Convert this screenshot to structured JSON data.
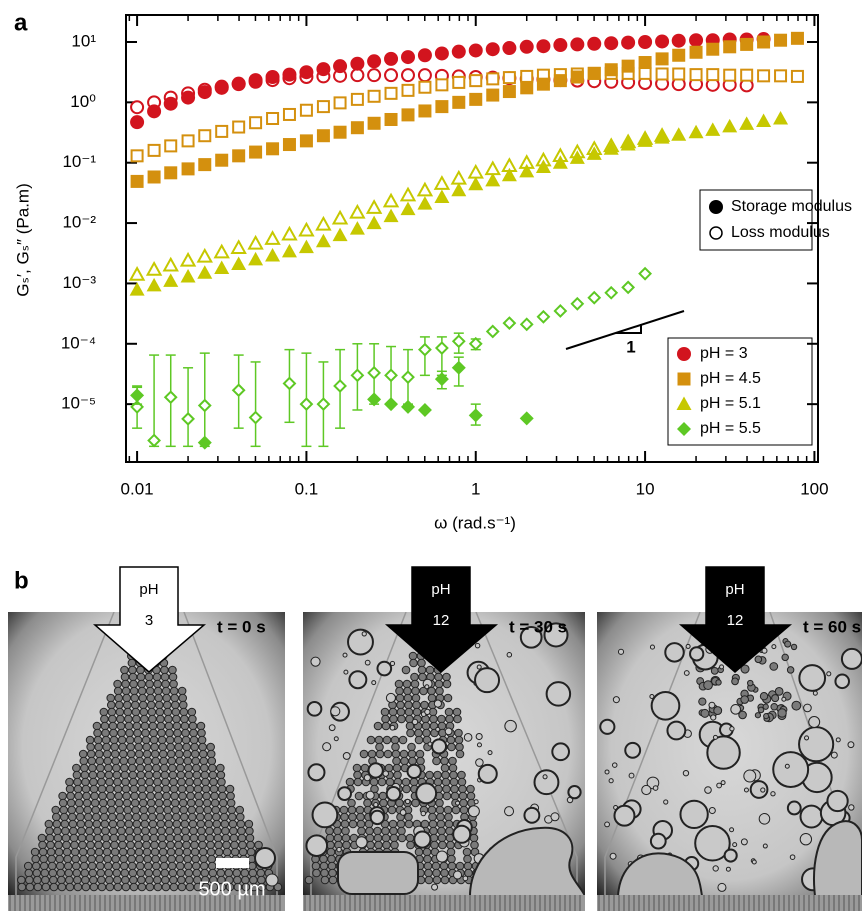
{
  "chart_data": {
    "type": "scatter",
    "panel": "a",
    "xlabel": "ω (rad.s⁻¹)",
    "ylabel": "Gₛ′, Gₛ″ (Pa.m)",
    "log_x": true,
    "log_y": true,
    "minor_ticks": true,
    "xlim": [
      0.0086,
      105
    ],
    "ylim": [
      1.1e-06,
      28
    ],
    "xticks": [
      0.01,
      0.1,
      1,
      10,
      100
    ],
    "yticks": [
      {
        "value": 10,
        "label": "10¹"
      },
      {
        "value": 1,
        "label": "10⁰"
      },
      {
        "value": 0.1,
        "label": "10⁻¹"
      },
      {
        "value": 0.01,
        "label": "10⁻²"
      },
      {
        "value": 0.001,
        "label": "10⁻³"
      },
      {
        "value": 0.0001,
        "label": "10⁻⁴"
      },
      {
        "value": 1e-05,
        "label": "10⁻⁵"
      }
    ],
    "x": [
      0.01,
      0.0126,
      0.0158,
      0.02,
      0.0251,
      0.0316,
      0.0398,
      0.0501,
      0.0631,
      0.0794,
      0.1,
      0.126,
      0.158,
      0.2,
      0.251,
      0.316,
      0.398,
      0.501,
      0.631,
      0.794,
      1,
      1.26,
      1.58,
      2,
      2.51,
      3.16,
      3.98,
      5.01,
      6.31,
      7.94,
      10,
      12.6,
      15.8,
      20,
      25.1,
      31.6,
      39.8,
      50.1,
      63.1,
      79.4
    ],
    "modulus_legend": [
      "Storage modulus",
      "Loss modulus"
    ],
    "slope_label": "1",
    "series": [
      {
        "name": "pH = 3",
        "color": "#d2141e",
        "marker": "circle",
        "storage": [
          0.47,
          0.71,
          0.95,
          1.2,
          1.48,
          1.74,
          2.04,
          2.34,
          2.63,
          2.88,
          3.16,
          3.55,
          3.98,
          4.37,
          4.79,
          5.25,
          5.62,
          6.03,
          6.46,
          6.92,
          7.24,
          7.59,
          7.94,
          8.32,
          8.51,
          8.91,
          9.12,
          9.33,
          9.55,
          9.77,
          10,
          10.2,
          10.5,
          10.7,
          10.7,
          11,
          11,
          11.2,
          null,
          null
        ],
        "loss": [
          0.83,
          1,
          1.2,
          1.41,
          1.62,
          1.82,
          2,
          2.19,
          2.34,
          2.51,
          2.63,
          2.69,
          2.75,
          2.82,
          2.82,
          2.82,
          2.82,
          2.82,
          2.75,
          2.69,
          2.63,
          2.57,
          2.51,
          2.45,
          2.4,
          2.34,
          2.29,
          2.24,
          2.19,
          2.14,
          2.09,
          2.04,
          2,
          2,
          1.95,
          1.95,
          1.91,
          null,
          null,
          null
        ]
      },
      {
        "name": "pH = 4.5",
        "color": "#d4900e",
        "marker": "square",
        "storage": [
          0.049,
          0.058,
          0.068,
          0.079,
          0.093,
          0.11,
          0.13,
          0.15,
          0.17,
          0.2,
          0.23,
          0.28,
          0.32,
          0.38,
          0.45,
          0.52,
          0.62,
          0.72,
          0.85,
          1,
          1.12,
          1.32,
          1.51,
          1.74,
          2,
          2.29,
          2.63,
          3.02,
          3.47,
          3.98,
          4.57,
          5.25,
          6.03,
          6.76,
          7.59,
          8.32,
          9.12,
          10,
          10.7,
          11.5
        ],
        "loss": [
          0.13,
          0.16,
          0.19,
          0.23,
          0.28,
          0.33,
          0.39,
          0.46,
          0.54,
          0.63,
          0.74,
          0.85,
          0.98,
          1.12,
          1.26,
          1.41,
          1.58,
          1.78,
          1.95,
          2.14,
          2.29,
          2.45,
          2.57,
          2.69,
          2.82,
          2.88,
          2.95,
          3.02,
          3.02,
          3.02,
          3.02,
          2.95,
          2.95,
          2.88,
          2.88,
          2.82,
          2.82,
          2.75,
          2.75,
          2.69
        ]
      },
      {
        "name": "pH = 5.1",
        "color": "#c6c800",
        "marker": "triangle",
        "storage": [
          0.00079,
          0.00093,
          0.0011,
          0.0013,
          0.0015,
          0.0018,
          0.0021,
          0.0025,
          0.0029,
          0.0034,
          0.004,
          0.005,
          0.0063,
          0.0081,
          0.01,
          0.013,
          0.017,
          0.021,
          0.027,
          0.035,
          0.044,
          0.051,
          0.062,
          0.072,
          0.085,
          0.1,
          0.12,
          0.14,
          0.17,
          0.2,
          0.23,
          0.26,
          0.29,
          0.32,
          0.35,
          0.4,
          0.44,
          0.49,
          0.54,
          null
        ],
        "loss": [
          0.0014,
          0.0017,
          0.002,
          0.0024,
          0.0028,
          0.0033,
          0.0039,
          0.0046,
          0.0055,
          0.0065,
          0.0076,
          0.0095,
          0.012,
          0.015,
          0.018,
          0.023,
          0.029,
          0.035,
          0.045,
          0.055,
          0.069,
          0.079,
          0.089,
          0.1,
          0.11,
          0.13,
          0.15,
          0.17,
          0.19,
          0.22,
          0.25,
          0.28,
          null,
          null,
          null,
          null,
          null,
          null,
          null,
          null
        ]
      },
      {
        "name": "pH = 5.5",
        "color": "#5ec824",
        "marker": "diamond",
        "storage": [
          1.4e-05,
          null,
          null,
          null,
          2.3e-06,
          null,
          null,
          null,
          null,
          null,
          null,
          null,
          null,
          null,
          1.2e-05,
          1e-05,
          9e-06,
          8e-06,
          2.6e-05,
          4e-05,
          6.5e-06,
          null,
          null,
          5.8e-06,
          null,
          null,
          null,
          null,
          null,
          null,
          null,
          null,
          null,
          null,
          null,
          null,
          null,
          null,
          null,
          null
        ],
        "storage_lower": [
          1e-05,
          null,
          null,
          null,
          null,
          null,
          null,
          null,
          null,
          null,
          null,
          null,
          null,
          null,
          null,
          null,
          null,
          null,
          1.8e-05,
          2e-05,
          4.5e-06,
          null,
          null,
          null,
          null,
          null,
          null,
          null,
          null,
          null,
          null,
          null,
          null,
          null,
          null,
          null,
          null,
          null,
          null,
          null
        ],
        "storage_upper": [
          1.9e-05,
          null,
          null,
          null,
          null,
          null,
          null,
          null,
          null,
          null,
          null,
          null,
          null,
          null,
          null,
          null,
          null,
          null,
          3.5e-05,
          6e-05,
          1e-05,
          null,
          null,
          null,
          null,
          null,
          null,
          null,
          null,
          null,
          null,
          null,
          null,
          null,
          null,
          null,
          null,
          null,
          null,
          null
        ],
        "loss": [
          9e-06,
          2.5e-06,
          1.3e-05,
          5.7e-06,
          9.5e-06,
          null,
          1.7e-05,
          6e-06,
          null,
          2.2e-05,
          1e-05,
          1e-05,
          2e-05,
          3e-05,
          3.3e-05,
          3e-05,
          2.8e-05,
          8e-05,
          8.5e-05,
          0.00011,
          0.0001,
          0.00016,
          0.00022,
          0.00021,
          0.00028,
          0.00035,
          0.00046,
          0.00058,
          0.0007,
          0.00086,
          0.00145,
          null,
          null,
          null,
          null,
          null,
          null,
          null,
          null,
          null
        ],
        "loss_lower": [
          4e-06,
          2e-06,
          2e-06,
          2e-06,
          2e-06,
          null,
          4e-06,
          2e-06,
          null,
          5e-06,
          2e-06,
          2e-06,
          4e-06,
          8e-06,
          1e-05,
          1e-05,
          1e-05,
          3e-05,
          3e-05,
          7e-05,
          8e-05,
          null,
          null,
          null,
          null,
          null,
          null,
          null,
          null,
          null,
          null,
          null,
          null,
          null,
          null,
          null,
          null,
          null,
          null,
          null
        ],
        "loss_upper": [
          2e-05,
          6.5e-05,
          6.5e-05,
          4e-05,
          7e-05,
          null,
          6.5e-05,
          5e-05,
          null,
          8e-05,
          7e-05,
          5e-05,
          8e-05,
          0.0001,
          0.0001,
          9e-05,
          8e-05,
          0.00013,
          0.00013,
          0.00015,
          0.00012,
          null,
          null,
          null,
          null,
          null,
          null,
          null,
          null,
          null,
          null,
          null,
          null,
          null,
          null,
          null,
          null,
          null,
          null,
          null
        ]
      }
    ]
  },
  "panel_b": {
    "panel": "b",
    "scale_bar": "500 µm",
    "frames": [
      {
        "arrow": "pH",
        "ph": "3",
        "time": "t = 0 s"
      },
      {
        "arrow": "pH",
        "ph": "12",
        "time": "t = 30 s"
      },
      {
        "arrow": "pH",
        "ph": "12",
        "time": "t = 60 s"
      }
    ]
  }
}
